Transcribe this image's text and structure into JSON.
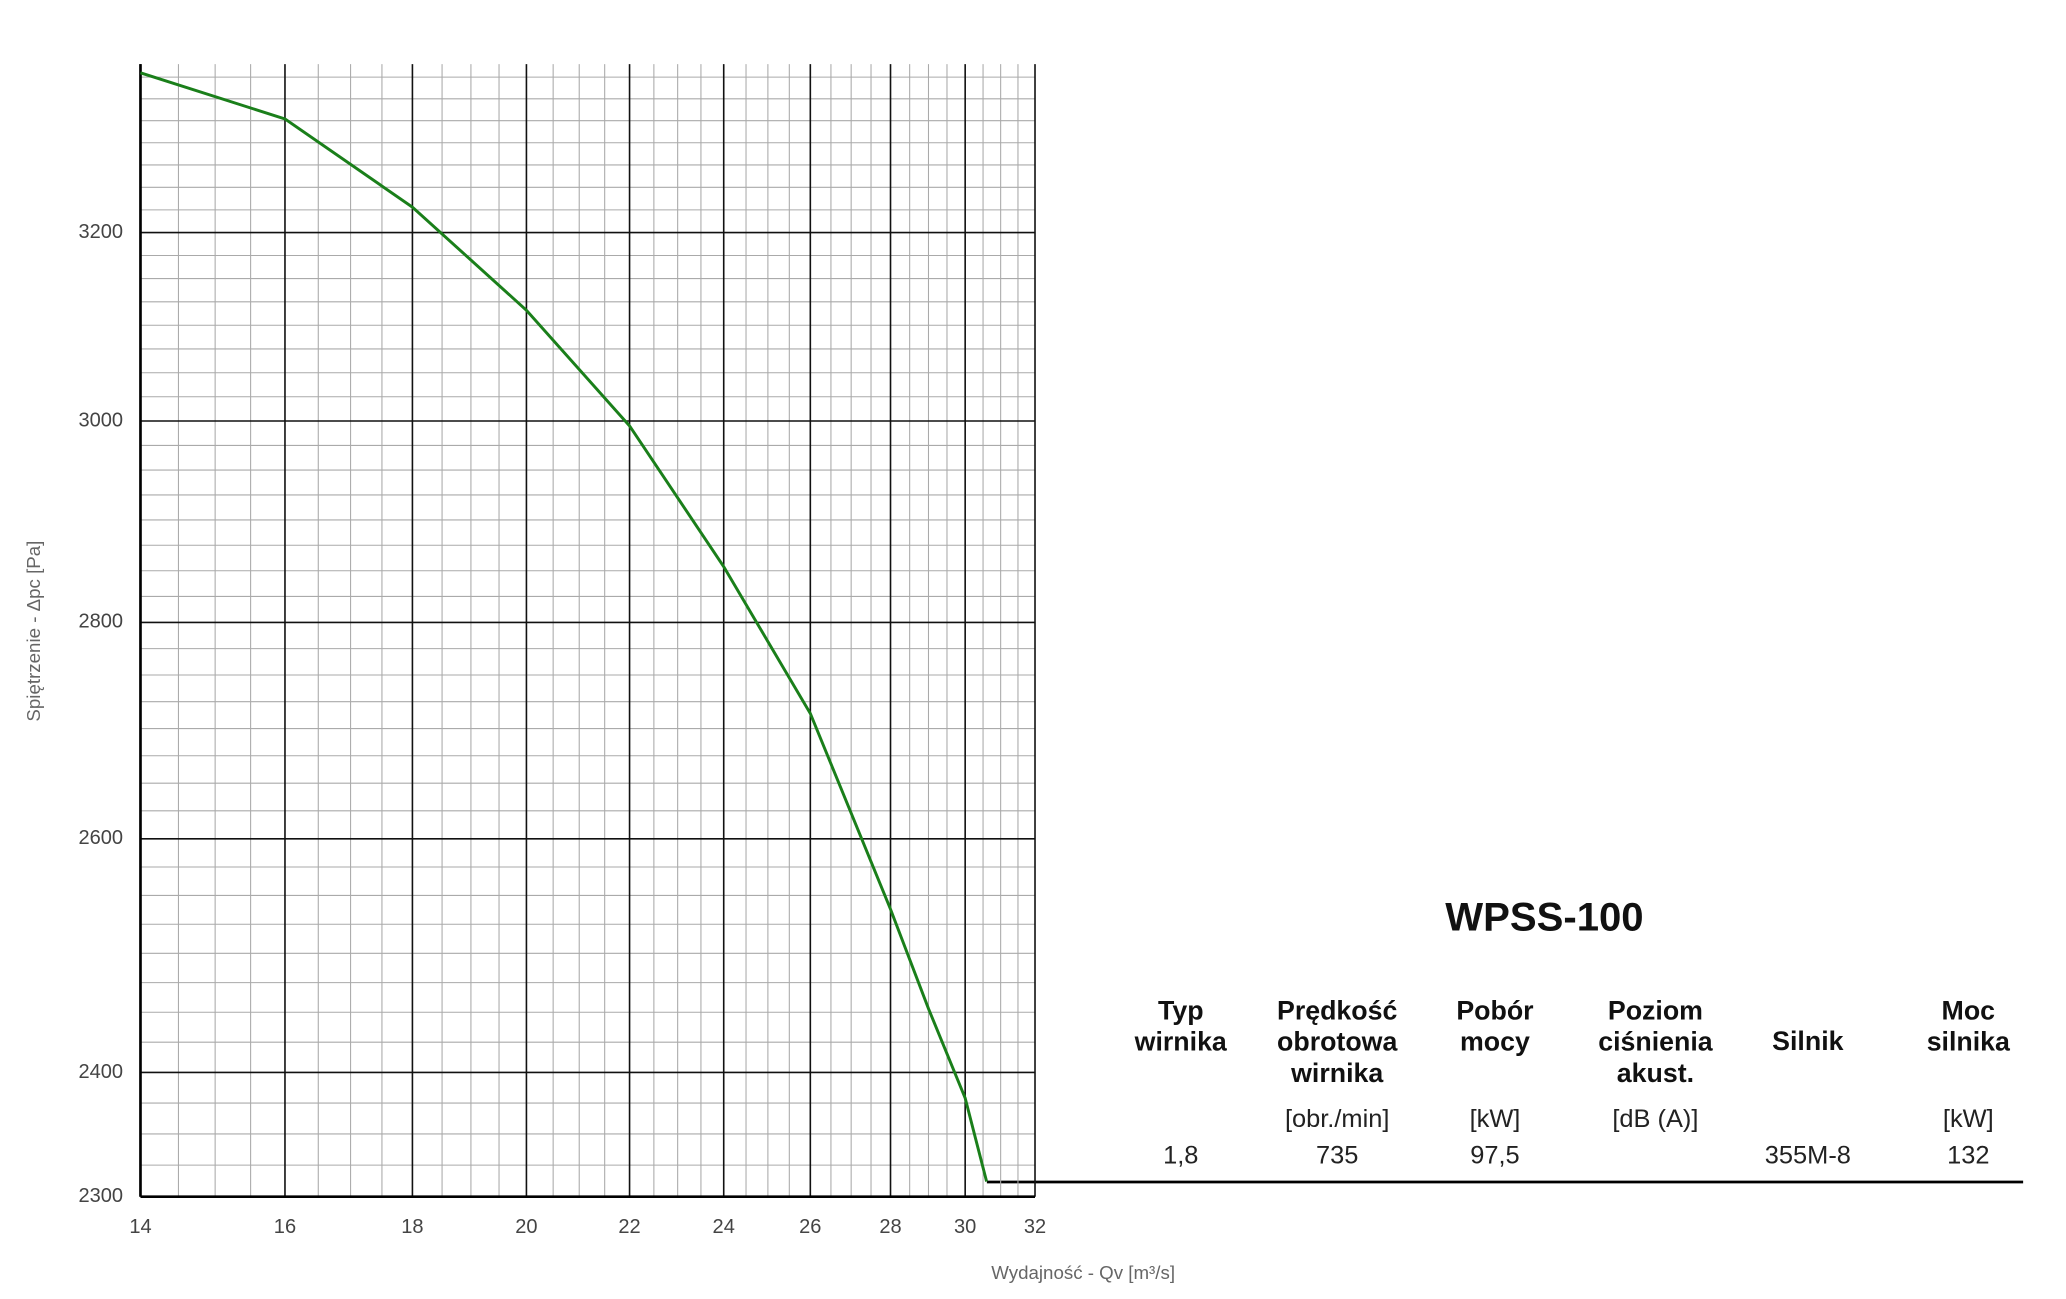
{
  "chart_data": {
    "type": "line",
    "x_label": "Wydajność - Qv [m³/s]",
    "y_label": "Spiętrzenie - Δpc [Pa]",
    "x": [
      14,
      16,
      18,
      20,
      22,
      24,
      26,
      28,
      29,
      30,
      30.6
    ],
    "values": [
      3380,
      3327,
      3228,
      3116,
      2995,
      2854,
      2714,
      2538,
      2453,
      2379,
      2312
    ],
    "color": "#1a7f1a",
    "xscale": "log",
    "yscale": "log",
    "xlim": [
      14,
      32
    ],
    "ylim": [
      2300,
      3390
    ],
    "xticks": [
      14,
      16,
      18,
      20,
      22,
      24,
      26,
      28,
      30,
      32
    ],
    "yticks": [
      2300,
      2400,
      2600,
      2800,
      3000,
      3200
    ],
    "grid": true
  },
  "table": {
    "title": "WPSS-100",
    "columns": [
      {
        "header": [
          "Typ",
          "wirnika"
        ],
        "value": "1,8"
      },
      {
        "header": [
          "Prędkość",
          "obrotowa",
          "wirnika"
        ],
        "unit": "[obr./min]",
        "value": "735"
      },
      {
        "header": [
          "Pobór",
          "mocy"
        ],
        "unit": "[kW]",
        "value": "97,5"
      },
      {
        "header": [
          "Poziom",
          "ciśnienia",
          "akust."
        ],
        "unit": "[dB (A)]"
      },
      {
        "header": [
          "Silnik"
        ],
        "value": "355M-8"
      },
      {
        "header": [
          "Moc",
          "silnika"
        ],
        "unit": "[kW]",
        "value": "132"
      }
    ]
  }
}
